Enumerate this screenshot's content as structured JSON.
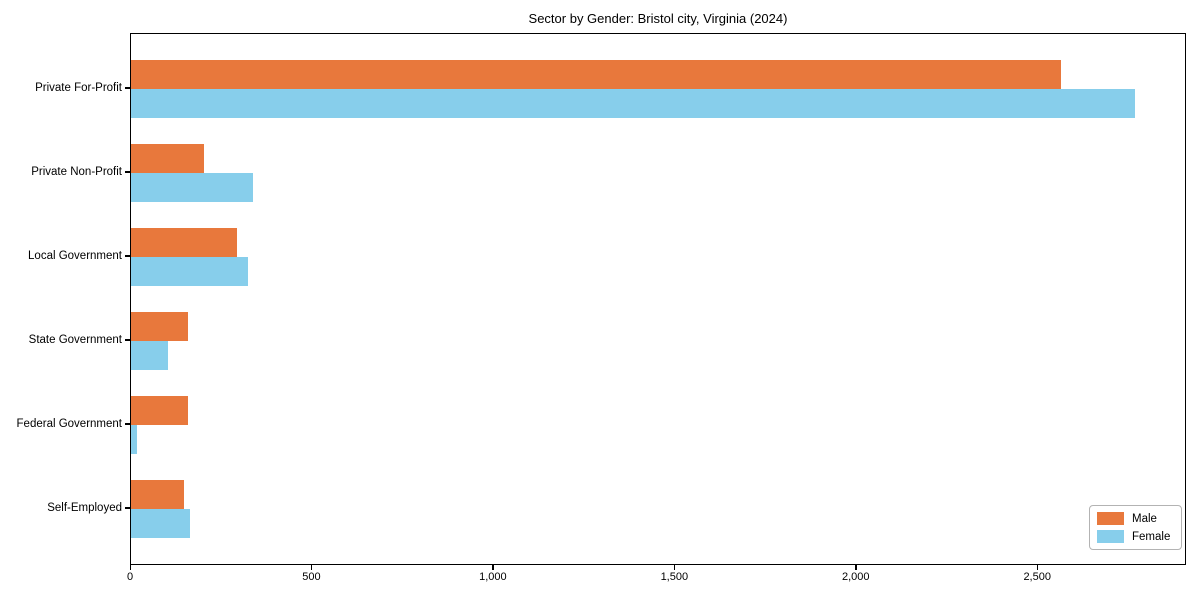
{
  "chart_data": {
    "type": "bar",
    "orientation": "horizontal",
    "title": "Sector by Gender: Bristol city, Virginia (2024)",
    "categories": [
      "Private For-Profit",
      "Private Non-Profit",
      "Local Government",
      "State Government",
      "Federal Government",
      "Self-Employed"
    ],
    "series": [
      {
        "name": "Male",
        "color": "#E8783C",
        "values": [
          2563,
          201,
          292,
          157,
          157,
          146
        ]
      },
      {
        "name": "Female",
        "color": "#87CEEB",
        "values": [
          2767,
          336,
          322,
          102,
          17,
          163
        ]
      }
    ],
    "xlabel": "",
    "ylabel": "",
    "xlim": [
      0,
      2910
    ],
    "x_ticks": [
      {
        "value": 0,
        "label": "0"
      },
      {
        "value": 500,
        "label": "500"
      },
      {
        "value": 1000,
        "label": "1,000"
      },
      {
        "value": 1500,
        "label": "1,500"
      },
      {
        "value": 2000,
        "label": "2,000"
      },
      {
        "value": 2500,
        "label": "2,500"
      }
    ],
    "grid": false,
    "legend_position": "lower right"
  }
}
